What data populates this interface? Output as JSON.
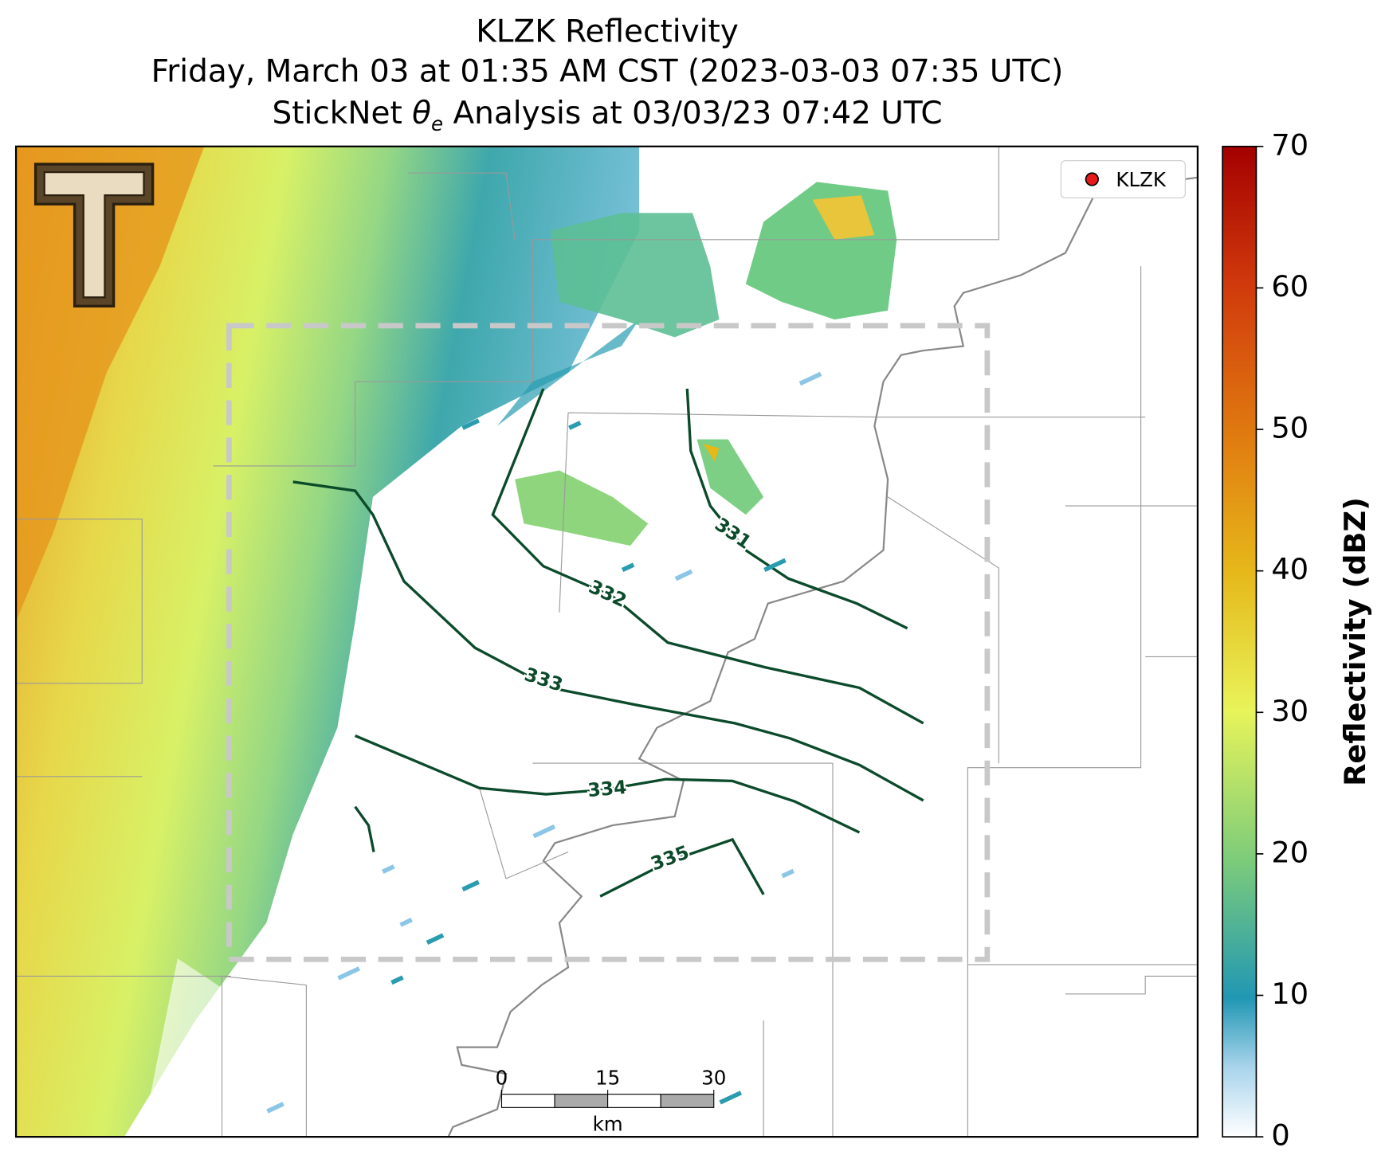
{
  "title": {
    "line1": "KLZK Reflectivity",
    "line2": "Friday, March 03 at 01:35 AM CST (2023-03-03 07:35 UTC)",
    "line3": {
      "prefix": "StickNet ",
      "symbol": "θ",
      "subscript": "e",
      "suffix": " Analysis at 03/03/23 07:42 UTC"
    }
  },
  "legend": {
    "label": "KLZK",
    "color": "#e8191a"
  },
  "colorbar": {
    "label": "Reflectivity (dBZ)",
    "lim": [
      0,
      70
    ],
    "ticks": [
      0,
      10,
      20,
      30,
      40,
      50,
      60,
      70
    ]
  },
  "contours": [
    {
      "level": 331
    },
    {
      "level": 332
    },
    {
      "level": 333
    },
    {
      "level": 334
    },
    {
      "level": 335
    }
  ],
  "scale_bar": {
    "ticks": [
      0,
      15,
      30
    ],
    "unit": "km"
  }
}
